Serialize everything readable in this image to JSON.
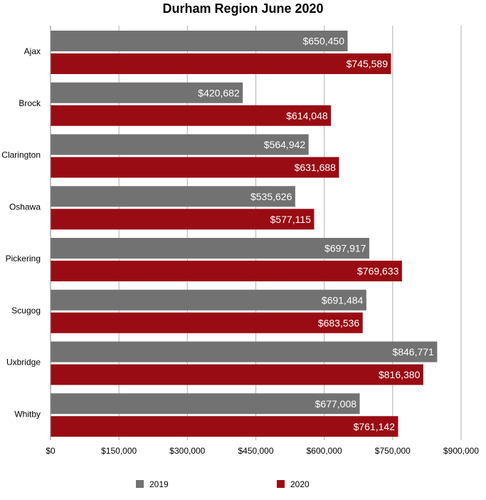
{
  "chart_data": {
    "type": "bar",
    "orientation": "horizontal",
    "title": "Durham Region June 2020",
    "categories": [
      "Ajax",
      "Brock",
      "Clarington",
      "Oshawa",
      "Pickering",
      "Scugog",
      "Uxbridge",
      "Whitby"
    ],
    "series": [
      {
        "name": "2019",
        "color": "#727272",
        "values": [
          650450,
          420682,
          564942,
          535626,
          697917,
          691484,
          846771,
          677008
        ],
        "labels": [
          "$650,450",
          "$420,682",
          "$564,942",
          "$535,626",
          "$697,917",
          "$691,484",
          "$846,771",
          "$677,008"
        ]
      },
      {
        "name": "2020",
        "color": "#9a0c14",
        "values": [
          745589,
          614048,
          631688,
          577115,
          769633,
          683536,
          816380,
          761142
        ],
        "labels": [
          "$745,589",
          "$614,048",
          "$631,688",
          "$577,115",
          "$769,633",
          "$683,536",
          "$816,380",
          "$761,142"
        ]
      }
    ],
    "xlim": [
      0,
      900000
    ],
    "xticks": [
      0,
      150000,
      300000,
      450000,
      600000,
      750000,
      900000
    ],
    "xtick_labels": [
      "$0",
      "$150,000",
      "$300,000",
      "$450,000",
      "$600,000",
      "$750,000",
      "$900,000"
    ],
    "grid": "vertical",
    "gridline_color": "#bdbdbd",
    "legend_position": "bottom"
  }
}
